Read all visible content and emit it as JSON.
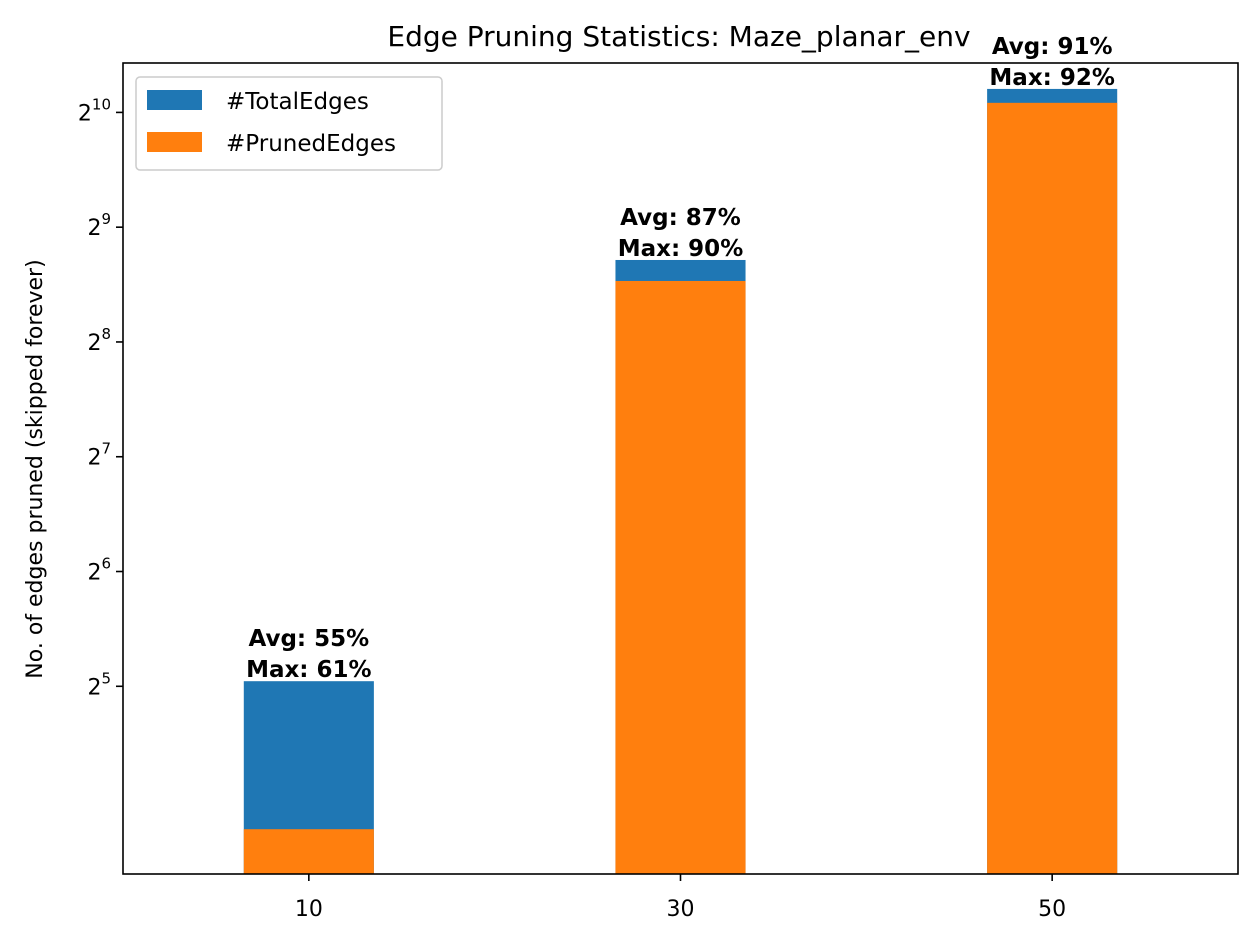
{
  "chart_data": {
    "type": "bar",
    "stacking": "overlay",
    "title": "Edge Pruning Statistics: Maze_planar_env",
    "xlabel": "",
    "ylabel": "No. of edges pruned (skipped forever)",
    "y_scale": "log2",
    "ylim": [
      10.3,
      1380
    ],
    "yticks": [
      {
        "value": 32,
        "base": "2",
        "exp": "5"
      },
      {
        "value": 64,
        "base": "2",
        "exp": "6"
      },
      {
        "value": 128,
        "base": "2",
        "exp": "7"
      },
      {
        "value": 256,
        "base": "2",
        "exp": "8"
      },
      {
        "value": 512,
        "base": "2",
        "exp": "9"
      },
      {
        "value": 1024,
        "base": "2",
        "exp": "10"
      }
    ],
    "categories": [
      "10",
      "30",
      "50"
    ],
    "series": [
      {
        "name": "#TotalEdges",
        "color": "#1f77b4",
        "values": [
          33,
          420,
          1180
        ]
      },
      {
        "name": "#PrunedEdges",
        "color": "#ff7f0e",
        "values": [
          13.5,
          370,
          1085
        ]
      }
    ],
    "annotations": [
      {
        "category": "10",
        "line1": "Avg: 55%",
        "line2": "Max: 61%"
      },
      {
        "category": "30",
        "line1": "Avg: 87%",
        "line2": "Max: 90%"
      },
      {
        "category": "50",
        "line1": "Avg: 91%",
        "line2": "Max: 92%"
      }
    ],
    "legend": {
      "position": "top-left"
    },
    "grid": false
  }
}
